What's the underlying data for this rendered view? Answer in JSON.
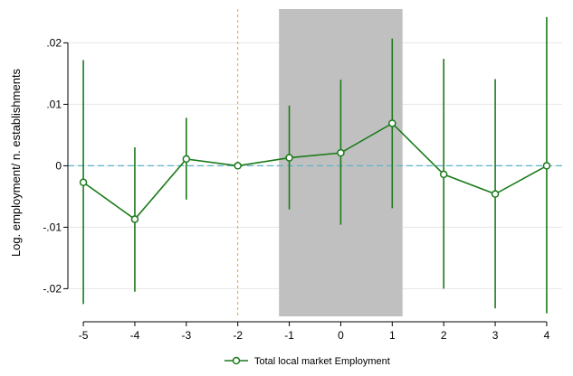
{
  "chart_data": {
    "type": "line",
    "ylabel": "Log. employment/ n. establishments",
    "x": [
      -5,
      -4,
      -3,
      -2,
      -1,
      0,
      1,
      2,
      3,
      4
    ],
    "x_ticks": [
      "-5",
      "-4",
      "-3",
      "-2",
      "-1",
      "0",
      "1",
      "2",
      "3",
      "4"
    ],
    "y_ticks": [
      {
        "value": 0.02,
        "label": ".02"
      },
      {
        "value": 0.01,
        "label": ".01"
      },
      {
        "value": 0,
        "label": "0"
      },
      {
        "value": -0.01,
        "label": "-.01"
      },
      {
        "value": -0.02,
        "label": "-.02"
      }
    ],
    "xlim": [
      -5.3,
      4.3
    ],
    "ylim": [
      -0.0245,
      0.0255
    ],
    "series": [
      {
        "name": "Total local market Employment",
        "color": "#1a7a1a",
        "values": [
          -0.0027,
          -0.0087,
          0.0011,
          0.0,
          0.0013,
          0.0021,
          0.0069,
          -0.0014,
          -0.0046,
          0.0
        ],
        "ci_low": [
          -0.0225,
          -0.0205,
          -0.0055,
          0.0,
          -0.0071,
          -0.0096,
          -0.0069,
          -0.02,
          -0.0232,
          -0.024
        ],
        "ci_high": [
          0.0172,
          0.003,
          0.0078,
          0.0,
          0.0098,
          0.014,
          0.0207,
          0.0174,
          0.0141,
          0.0242
        ]
      }
    ],
    "reference_lines": {
      "horizontal_y": 0,
      "horizontal_color": "#5ab4c8",
      "vertical_x": -2,
      "vertical_color": "#e8a040"
    },
    "shaded_region": {
      "x_start": -1.2,
      "x_end": 1.2,
      "color": "#c0c0c0"
    },
    "grid": true,
    "legend_position": "bottom-center"
  }
}
